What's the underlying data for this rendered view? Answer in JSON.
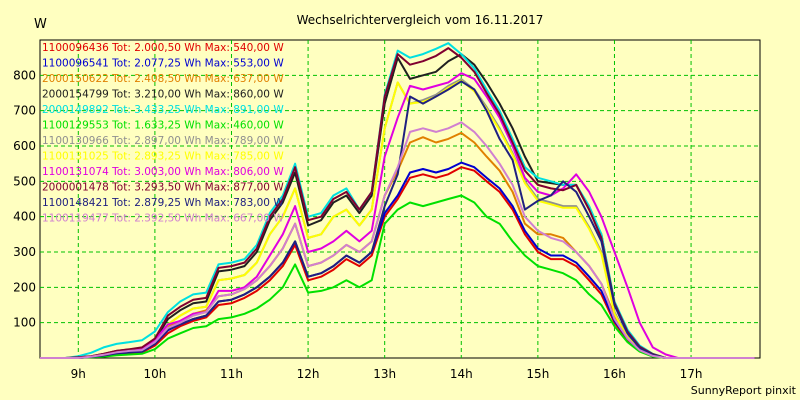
{
  "chart_data": {
    "type": "line",
    "title": "Wechselrichtervergleich vom 16.11.2017",
    "ylabel": "W",
    "ylim": [
      0,
      900
    ],
    "yticks": [
      100,
      200,
      300,
      400,
      500,
      600,
      700,
      800
    ],
    "xlim": [
      8.5,
      17.9
    ],
    "xticks": [
      {
        "v": 9,
        "label": "9h"
      },
      {
        "v": 10,
        "label": "10h"
      },
      {
        "v": 11,
        "label": "11h"
      },
      {
        "v": 12,
        "label": "12h"
      },
      {
        "v": 13,
        "label": "13h"
      },
      {
        "v": 14,
        "label": "14h"
      },
      {
        "v": 15,
        "label": "15h"
      },
      {
        "v": 16,
        "label": "16h"
      },
      {
        "v": 17,
        "label": "17h"
      }
    ],
    "grid": true,
    "legend_position": "top-left",
    "footer": "SunnyReport pinxit",
    "x": [
      8.5,
      8.83,
      9.0,
      9.17,
      9.33,
      9.5,
      9.67,
      9.83,
      10.0,
      10.17,
      10.33,
      10.5,
      10.67,
      10.83,
      11.0,
      11.17,
      11.33,
      11.5,
      11.67,
      11.83,
      12.0,
      12.17,
      12.33,
      12.5,
      12.67,
      12.83,
      13.0,
      13.17,
      13.33,
      13.5,
      13.67,
      13.83,
      14.0,
      14.17,
      14.33,
      14.5,
      14.67,
      14.83,
      15.0,
      15.17,
      15.33,
      15.5,
      15.67,
      15.83,
      16.0,
      16.17,
      16.33,
      16.5,
      16.67,
      16.83,
      17.0,
      17.17,
      17.33,
      17.5,
      17.67,
      17.83
    ],
    "series": [
      {
        "name": "1100096436",
        "legend": "1100096436 Tot: 2.000,50 Wh Max: 540,00 W",
        "color": "#e00000",
        "values": [
          0,
          0,
          0,
          3,
          7,
          12,
          14,
          16,
          35,
          70,
          90,
          105,
          115,
          150,
          155,
          170,
          190,
          220,
          260,
          320,
          220,
          230,
          250,
          280,
          260,
          290,
          400,
          450,
          510,
          520,
          510,
          520,
          540,
          530,
          500,
          470,
          420,
          350,
          300,
          280,
          280,
          260,
          220,
          180,
          100,
          50,
          20,
          5,
          0,
          0,
          0,
          0,
          0,
          0,
          0,
          0
        ]
      },
      {
        "name": "1100096541",
        "legend": "1100096541 Tot: 2.077,25 Wh Max: 553,00 W",
        "color": "#0000d0",
        "values": [
          0,
          0,
          0,
          3,
          7,
          13,
          16,
          18,
          40,
          78,
          95,
          110,
          120,
          160,
          165,
          180,
          200,
          230,
          270,
          330,
          230,
          240,
          260,
          290,
          270,
          300,
          410,
          460,
          525,
          535,
          525,
          535,
          553,
          540,
          510,
          480,
          430,
          360,
          310,
          290,
          290,
          270,
          230,
          190,
          105,
          55,
          22,
          6,
          0,
          0,
          0,
          0,
          0,
          0,
          0,
          0
        ]
      },
      {
        "name": "2000150622",
        "legend": "2000150622 Tot: 2.408,50 Wh Max: 637,00 W",
        "color": "#e08000",
        "values": [
          0,
          0,
          0,
          4,
          9,
          16,
          20,
          22,
          45,
          88,
          105,
          125,
          135,
          175,
          180,
          195,
          220,
          260,
          310,
          380,
          260,
          270,
          290,
          320,
          300,
          330,
          460,
          530,
          610,
          625,
          610,
          620,
          637,
          610,
          570,
          530,
          470,
          380,
          350,
          350,
          340,
          300,
          260,
          210,
          120,
          60,
          25,
          8,
          0,
          0,
          0,
          0,
          0,
          0,
          0,
          0
        ]
      },
      {
        "name": "2000154799",
        "legend": "2000154799 Tot: 3.210,00 Wh Max: 860,00 W",
        "color": "#202020",
        "values": [
          0,
          0,
          2,
          5,
          12,
          20,
          24,
          28,
          50,
          110,
          135,
          155,
          160,
          245,
          250,
          260,
          300,
          390,
          440,
          525,
          375,
          390,
          440,
          460,
          410,
          460,
          720,
          850,
          790,
          800,
          810,
          840,
          860,
          830,
          780,
          720,
          650,
          570,
          500,
          495,
          490,
          490,
          420,
          350,
          150,
          70,
          30,
          10,
          0,
          0,
          0,
          0,
          0,
          0,
          0,
          0
        ]
      },
      {
        "name": "2000149892",
        "legend": "2000149892 Tot: 3.433,25 Wh Max: 891,00 W",
        "color": "#00e0e0",
        "values": [
          0,
          0,
          5,
          15,
          30,
          40,
          45,
          50,
          75,
          130,
          160,
          180,
          185,
          265,
          270,
          280,
          320,
          410,
          460,
          550,
          400,
          410,
          460,
          480,
          420,
          470,
          745,
          870,
          850,
          860,
          875,
          891,
          860,
          820,
          760,
          700,
          620,
          540,
          510,
          500,
          490,
          490,
          430,
          350,
          160,
          80,
          35,
          12,
          0,
          0,
          0,
          0,
          0,
          0,
          0,
          0
        ]
      },
      {
        "name": "1100129553",
        "legend": "1100129553 Tot: 1.633,25 Wh Max: 460,00 W",
        "color": "#00e000",
        "values": [
          0,
          0,
          0,
          2,
          4,
          8,
          10,
          12,
          25,
          55,
          70,
          85,
          90,
          110,
          115,
          125,
          140,
          165,
          200,
          265,
          185,
          190,
          200,
          220,
          200,
          220,
          380,
          420,
          440,
          430,
          440,
          450,
          460,
          440,
          400,
          380,
          330,
          290,
          260,
          250,
          240,
          220,
          180,
          150,
          90,
          45,
          18,
          4,
          0,
          0,
          0,
          0,
          0,
          0,
          0,
          0
        ]
      },
      {
        "name": "1100130966",
        "legend": "1100130966 Tot: 2.897,00 Wh Max: 789,00 W",
        "color": "#909090",
        "values": [
          0,
          0,
          1,
          4,
          10,
          17,
          20,
          24,
          45,
          95,
          120,
          140,
          145,
          220,
          225,
          235,
          270,
          350,
          400,
          480,
          340,
          350,
          400,
          420,
          375,
          420,
          650,
          780,
          720,
          730,
          745,
          770,
          789,
          760,
          710,
          650,
          580,
          500,
          450,
          440,
          430,
          430,
          370,
          300,
          130,
          60,
          25,
          8,
          0,
          0,
          0,
          0,
          0,
          0,
          0,
          0
        ]
      },
      {
        "name": "1100131025",
        "legend": "1100131025 Tot: 2.893,25 Wh Max: 785,00 W",
        "color": "#ffff00",
        "values": [
          0,
          0,
          1,
          4,
          10,
          17,
          20,
          24,
          45,
          95,
          120,
          140,
          145,
          220,
          225,
          235,
          270,
          350,
          400,
          480,
          340,
          350,
          400,
          420,
          375,
          420,
          650,
          780,
          720,
          725,
          740,
          765,
          785,
          755,
          705,
          645,
          575,
          495,
          445,
          435,
          425,
          425,
          365,
          295,
          125,
          58,
          24,
          8,
          0,
          0,
          0,
          0,
          0,
          0,
          0,
          0
        ]
      },
      {
        "name": "1100131074",
        "legend": "1100131074 Tot: 3.003,00 Wh Max: 806,00 W",
        "color": "#e000e0",
        "values": [
          0,
          0,
          0,
          4,
          9,
          16,
          20,
          24,
          50,
          95,
          105,
          125,
          130,
          190,
          190,
          200,
          230,
          290,
          350,
          430,
          300,
          310,
          330,
          360,
          330,
          360,
          570,
          680,
          770,
          760,
          770,
          780,
          806,
          790,
          740,
          680,
          600,
          510,
          470,
          460,
          480,
          520,
          470,
          400,
          300,
          200,
          100,
          30,
          10,
          0,
          0,
          0,
          0,
          0,
          0,
          0
        ]
      },
      {
        "name": "2000001478",
        "legend": "2000001478 Tot: 3.293,50 Wh Max: 877,00 W",
        "color": "#800030",
        "values": [
          0,
          0,
          2,
          5,
          12,
          20,
          25,
          30,
          55,
          120,
          145,
          165,
          170,
          255,
          260,
          270,
          310,
          400,
          450,
          540,
          390,
          400,
          450,
          470,
          420,
          470,
          740,
          860,
          830,
          840,
          855,
          877,
          850,
          810,
          750,
          690,
          610,
          530,
          490,
          480,
          475,
          490,
          420,
          340,
          155,
          75,
          32,
          11,
          0,
          0,
          0,
          0,
          0,
          0,
          0,
          0
        ]
      },
      {
        "name": "1100148421",
        "legend": "1100148421 Tot: 2.879,25 Wh Max: 783,00 W",
        "color": "#202080",
        "values": [
          0,
          0,
          0,
          3,
          7,
          13,
          16,
          18,
          40,
          80,
          95,
          110,
          120,
          160,
          165,
          180,
          200,
          230,
          270,
          330,
          230,
          240,
          260,
          290,
          270,
          300,
          430,
          520,
          740,
          720,
          740,
          760,
          783,
          760,
          700,
          620,
          560,
          420,
          445,
          460,
          500,
          470,
          400,
          330,
          150,
          70,
          28,
          9,
          0,
          0,
          0,
          0,
          0,
          0,
          0,
          0
        ]
      },
      {
        "name": "1100119477",
        "legend": "1100119477 Tot: 2.392,50 Wh Max: 667,00 W",
        "color": "#d080d0",
        "values": [
          0,
          0,
          0,
          4,
          9,
          16,
          20,
          22,
          45,
          85,
          100,
          120,
          130,
          175,
          180,
          195,
          220,
          260,
          310,
          380,
          260,
          270,
          290,
          320,
          300,
          330,
          460,
          540,
          640,
          650,
          640,
          650,
          667,
          640,
          600,
          550,
          490,
          400,
          360,
          340,
          330,
          300,
          260,
          210,
          110,
          55,
          22,
          6,
          0,
          0,
          0,
          0,
          0,
          0,
          0,
          0
        ]
      }
    ]
  }
}
